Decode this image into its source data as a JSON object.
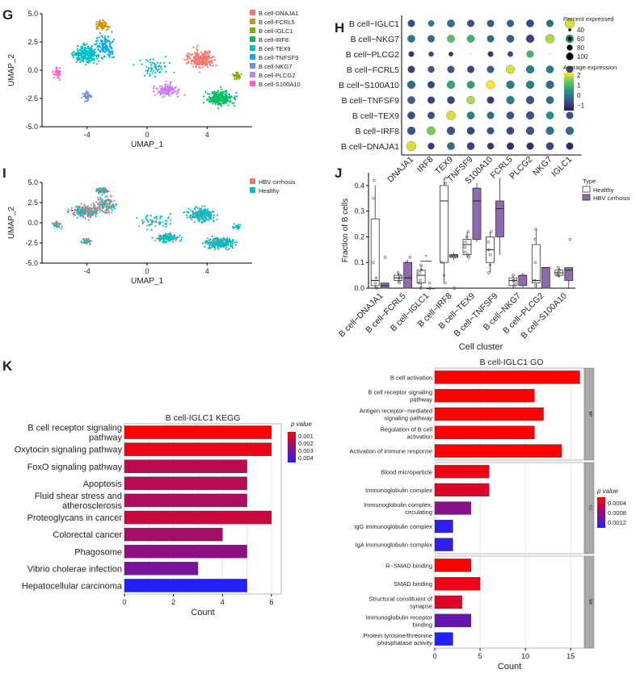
{
  "panels": {
    "G": "G",
    "H": "H",
    "I": "I",
    "J": "J",
    "K": "K"
  },
  "colors": {
    "DNAJA1": "#F8766D",
    "FCRL5": "#CD9600",
    "IGLC1": "#7CAE00",
    "IRF8": "#00BE67",
    "TEX9": "#00BFC4",
    "TNFSF9": "#00A9FF",
    "NKG7": "#6F8FE0",
    "PLCG2": "#C77CFF",
    "S100A10": "#FF61CC",
    "hbv": "#F8766D",
    "healthy": "#00BFC4",
    "box_healthy": "#ffffff",
    "box_hbv": "#8E6AAE"
  },
  "chart_data": [
    {
      "id": "G",
      "type": "scatter",
      "title": "",
      "xlabel": "UMAP_1",
      "ylabel": "UMAP_2",
      "xticks": [
        "-4",
        "0",
        "4"
      ],
      "yticks": [
        "5.0",
        "2.5",
        "0.0",
        "-2.5",
        "-5.0"
      ],
      "xlim": [
        -7,
        7
      ],
      "ylim": [
        -5,
        5
      ],
      "legend": [
        "B cell-DNAJA1",
        "B cell-FCRL5",
        "B cell-IGLC1",
        "B cell-IRF8",
        "B cell-TEX9",
        "B cell-TNFSF9",
        "B cell-NKG7",
        "B cell-PLCG2",
        "B cell-S100A10"
      ],
      "clusters": [
        {
          "name": "TEX9",
          "cx": -4.1,
          "cy": 1.4,
          "sx": 1.2,
          "sy": 1.0,
          "n": 260
        },
        {
          "name": "FCRL5",
          "cx": -3.0,
          "cy": 4.0,
          "sx": 0.55,
          "sy": 0.5,
          "n": 70
        },
        {
          "name": "TNFSF9",
          "cx": -2.8,
          "cy": 2.2,
          "sx": 0.9,
          "sy": 1.3,
          "n": 130
        },
        {
          "name": "S100A10",
          "cx": -6.0,
          "cy": -0.2,
          "sx": 0.35,
          "sy": 0.6,
          "n": 45
        },
        {
          "name": "NKG7",
          "cx": -4.0,
          "cy": -2.3,
          "sx": 0.45,
          "sy": 0.55,
          "n": 40
        },
        {
          "name": "PLCG2",
          "cx": 1.4,
          "cy": -1.8,
          "sx": 1.0,
          "sy": 0.8,
          "n": 130
        },
        {
          "name": "DNAJA1",
          "cx": 3.6,
          "cy": 1.0,
          "sx": 1.2,
          "sy": 1.1,
          "n": 230
        },
        {
          "name": "IRF8",
          "cx": 4.9,
          "cy": -2.5,
          "sx": 1.2,
          "sy": 0.9,
          "n": 260
        },
        {
          "name": "IGLC1",
          "cx": 6.0,
          "cy": -0.5,
          "sx": 0.35,
          "sy": 0.4,
          "n": 35
        },
        {
          "name": "TEX9",
          "cx": 0.5,
          "cy": 0.3,
          "sx": 1.6,
          "sy": 1.2,
          "n": 60
        }
      ]
    },
    {
      "id": "H",
      "type": "dot",
      "rows": [
        "B cell−IGLC1",
        "B cell−NKG7",
        "B cell−PLCG2",
        "B cell−FCRL5",
        "B cell−S100A10",
        "B cell−TNFSF9",
        "B cell−TEX9",
        "B cell−IRF8",
        "B cell−DNAJA1"
      ],
      "cols": [
        "DNAJA1",
        "IRF8",
        "TEX9",
        "TNFSF9",
        "S100A10",
        "FCRL5",
        "PLCG2",
        "NKG7",
        "IGLC1"
      ],
      "pct": [
        [
          70,
          60,
          75,
          70,
          70,
          70,
          75,
          70,
          95
        ],
        [
          75,
          70,
          75,
          75,
          70,
          75,
          80,
          90,
          80
        ],
        [
          55,
          50,
          45,
          5,
          55,
          55,
          70,
          5,
          35
        ],
        [
          70,
          65,
          70,
          70,
          70,
          85,
          80,
          75,
          70
        ],
        [
          80,
          70,
          80,
          75,
          85,
          80,
          80,
          80,
          70
        ],
        [
          75,
          70,
          75,
          80,
          70,
          80,
          80,
          75,
          75
        ],
        [
          75,
          70,
          90,
          75,
          70,
          75,
          80,
          75,
          70
        ],
        [
          80,
          85,
          80,
          75,
          70,
          75,
          80,
          80,
          80
        ],
        [
          95,
          65,
          75,
          75,
          65,
          70,
          70,
          75,
          70
        ]
      ],
      "avg": [
        [
          -0.4,
          0.2,
          0.0,
          -0.4,
          -0.2,
          -0.1,
          -0.5,
          0.0,
          2.0
        ],
        [
          0.2,
          0.0,
          1.2,
          1.0,
          0.0,
          -0.2,
          -0.6,
          1.8,
          0.5
        ],
        [
          -0.8,
          -0.5,
          -0.8,
          -1.0,
          -0.8,
          -0.4,
          1.0,
          -1.0,
          -0.4
        ],
        [
          -0.6,
          -0.2,
          -0.3,
          -0.5,
          -0.2,
          2.0,
          0.3,
          0.2,
          -0.4
        ],
        [
          0.0,
          -0.5,
          0.8,
          0.7,
          2.2,
          0.2,
          0.3,
          0.0,
          -0.7
        ],
        [
          -0.2,
          -0.6,
          -0.5,
          1.8,
          -0.7,
          0.3,
          -0.3,
          0.0,
          0.0
        ],
        [
          -0.4,
          -0.4,
          2.0,
          0.3,
          0.0,
          -0.3,
          -0.3,
          0.5,
          -0.4
        ],
        [
          -0.3,
          1.5,
          -0.3,
          -0.5,
          -0.4,
          -0.5,
          -0.3,
          0.1,
          0.0
        ],
        [
          2.0,
          -0.7,
          0.0,
          -0.6,
          -0.8,
          -0.9,
          -0.9,
          -0.6,
          -1.0
        ]
      ],
      "size_legend_title": "Percent expressed",
      "size_legend": [
        40,
        60,
        80,
        100
      ],
      "color_legend_title": "Average expression",
      "color_ticks": [
        "2",
        "1",
        "0",
        "−1"
      ]
    },
    {
      "id": "I",
      "type": "scatter",
      "xlabel": "UMAP_1",
      "ylabel": "UMAP_2",
      "xticks": [
        "-4",
        "0",
        "4"
      ],
      "yticks": [
        "5.0",
        "2.5",
        "0.0",
        "-2.5",
        "-5.0"
      ],
      "legend": [
        "HBV cirrhosis",
        "Healthy"
      ]
    },
    {
      "id": "J",
      "type": "boxplot",
      "xlabel": "Cell cluster",
      "ylabel": "Fraction of  B cells",
      "ylim": [
        0,
        0.45
      ],
      "yticks": [
        "0.0",
        "0.1",
        "0.2",
        "0.3",
        "0.4"
      ],
      "legend_title": "Type",
      "legend": [
        "Healthy",
        "HBV cirrhosis"
      ],
      "categories": [
        "B cell−DNAJA1",
        "B cell−FCRL5",
        "B cell−IGLC1",
        "B cell−IRF8",
        "B cell−TEX9",
        "B cell−TNFSF9",
        "B cell−NKG7",
        "B cell−PLCG2",
        "B cell−S100A10"
      ],
      "significance": [
        {
          "category": 2,
          "label": "*"
        }
      ],
      "healthy": [
        {
          "min": 0.0,
          "q1": 0.01,
          "med": 0.03,
          "q3": 0.27,
          "max": 0.4,
          "pts": [
            0.42,
            0.35,
            0.1,
            0.04,
            0.02,
            0.0
          ]
        },
        {
          "min": 0.02,
          "q1": 0.03,
          "med": 0.04,
          "q3": 0.05,
          "max": 0.06,
          "pts": [
            0.05,
            0.04,
            0.03,
            0.06,
            0.02
          ]
        },
        {
          "min": 0.0,
          "q1": 0.02,
          "med": 0.05,
          "q3": 0.07,
          "max": 0.09,
          "pts": [
            0.09,
            0.07,
            0.06,
            0.03,
            0.0,
            0.02
          ]
        },
        {
          "min": 0.02,
          "q1": 0.1,
          "med": 0.34,
          "q3": 0.4,
          "max": 0.43,
          "pts": [
            0.43,
            0.41,
            0.1,
            0.05,
            0.02
          ]
        },
        {
          "min": 0.12,
          "q1": 0.13,
          "med": 0.17,
          "q3": 0.19,
          "max": 0.22,
          "pts": [
            0.22,
            0.2,
            0.18,
            0.16,
            0.13,
            0.14,
            0.12
          ]
        },
        {
          "min": 0.06,
          "q1": 0.1,
          "med": 0.15,
          "q3": 0.2,
          "max": 0.22,
          "pts": [
            0.22,
            0.18,
            0.13,
            0.15,
            0.09,
            0.06
          ]
        },
        {
          "min": 0.0,
          "q1": 0.01,
          "med": 0.03,
          "q3": 0.04,
          "max": 0.05,
          "pts": [
            0.05,
            0.03,
            0.02,
            0.01,
            0.03
          ]
        },
        {
          "min": 0.0,
          "q1": 0.02,
          "med": 0.03,
          "q3": 0.17,
          "max": 0.23,
          "pts": [
            0.23,
            0.19,
            0.1,
            0.03,
            0.01
          ]
        },
        {
          "min": 0.04,
          "q1": 0.05,
          "med": 0.06,
          "q3": 0.07,
          "max": 0.08,
          "pts": [
            0.08,
            0.06,
            0.05,
            0.07,
            0.05
          ]
        }
      ],
      "hbv": [
        {
          "min": 0.0,
          "q1": 0.0,
          "med": 0.01,
          "q3": 0.02,
          "max": 0.02,
          "pts": [
            0.12
          ]
        },
        {
          "min": 0.0,
          "q1": 0.0,
          "med": 0.04,
          "q3": 0.1,
          "max": 0.11,
          "pts": [
            0.12,
            0.1,
            0.04
          ]
        },
        {
          "min": 0.0,
          "q1": 0.0,
          "med": 0.0,
          "q3": 0.0,
          "max": 0.0,
          "pts": [
            0.02,
            0.0
          ]
        },
        {
          "min": 0.11,
          "q1": 0.12,
          "med": 0.13,
          "q3": 0.13,
          "max": 0.14,
          "pts": [
            0.0
          ]
        },
        {
          "min": 0.18,
          "q1": 0.19,
          "med": 0.34,
          "q3": 0.39,
          "max": 0.41,
          "pts": []
        },
        {
          "min": 0.13,
          "q1": 0.2,
          "med": 0.31,
          "q3": 0.34,
          "max": 0.43,
          "pts": []
        },
        {
          "min": 0.0,
          "q1": 0.01,
          "med": 0.05,
          "q3": 0.05,
          "max": 0.06,
          "pts": []
        },
        {
          "min": 0.0,
          "q1": 0.0,
          "med": 0.08,
          "q3": 0.08,
          "max": 0.08,
          "pts": []
        },
        {
          "min": 0.0,
          "q1": 0.03,
          "med": 0.07,
          "q3": 0.08,
          "max": 0.08,
          "pts": [
            0.19
          ]
        }
      ]
    },
    {
      "id": "K_KEGG",
      "type": "bar",
      "orientation": "horizontal",
      "title": "B cell-IGLC1 KEGG",
      "xlabel": "Count",
      "xlim": [
        0,
        6.4
      ],
      "xticks": [
        "0",
        "2",
        "4",
        "6"
      ],
      "categories": [
        "B cell receptor signaling\npathway",
        "Oxytocin signaling pathway",
        "FoxO signaling pathway",
        "Apoptosis",
        "Fluid shear stress and\natherosclerosis",
        "Proteoglycans in cancer",
        "Colorectal cancer",
        "Phagosome",
        "Vibrio cholerae infection",
        "Hepatocellular carcinoma"
      ],
      "values": [
        6,
        6,
        5,
        5,
        5,
        6,
        4,
        5,
        3,
        5
      ],
      "pvalues": [
        0.0005,
        0.0008,
        0.0015,
        0.0016,
        0.0017,
        0.0013,
        0.0018,
        0.0022,
        0.0025,
        0.0038
      ],
      "legend_title": "p value",
      "legend_ticks": [
        "0.001",
        "0.002",
        "0.003",
        "0.004"
      ]
    },
    {
      "id": "K_GO",
      "type": "bar",
      "orientation": "horizontal",
      "title": "B cell-IGLC1 GO",
      "xlabel": "Count",
      "xlim": [
        0,
        16.5
      ],
      "xticks": [
        "0",
        "5",
        "10",
        "15"
      ],
      "facets": [
        {
          "name": "BP",
          "categories": [
            "B cell activation",
            "B cell receptor signaling\npathway",
            "Antigen receptor−mediated\nsignaling pathway",
            "Regulation of B cell\nactivation",
            "Activation of immune response"
          ],
          "values": [
            16,
            11,
            12,
            11,
            14
          ],
          "pvalues": [
            0.0001,
            0.0001,
            0.0001,
            0.0001,
            0.0001
          ]
        },
        {
          "name": "CC",
          "categories": [
            "Blood microparticle",
            "Immunoglobulin complex",
            "Immunoglobulin complex,\ncirculating",
            "IgG immunoglobulin complex",
            "IgA immunoglobulin complex"
          ],
          "values": [
            6,
            6,
            4,
            2,
            2
          ],
          "pvalues": [
            0.0002,
            0.0003,
            0.0008,
            0.0013,
            0.0013
          ]
        },
        {
          "name": "MF",
          "categories": [
            "R−SMAD binding",
            "SMAD binding",
            "Structural constituent of\nsynapse",
            "Immunoglobulin receptor\nbinding",
            "Protein tyrosine/threonine\nphosphatase activity"
          ],
          "values": [
            4,
            5,
            3,
            4,
            2
          ],
          "pvalues": [
            0.0001,
            0.0002,
            0.0003,
            0.001,
            0.0014
          ]
        }
      ],
      "legend_title": "p value",
      "legend_ticks": [
        "0.0004",
        "0.0008",
        "0.0012"
      ]
    }
  ]
}
